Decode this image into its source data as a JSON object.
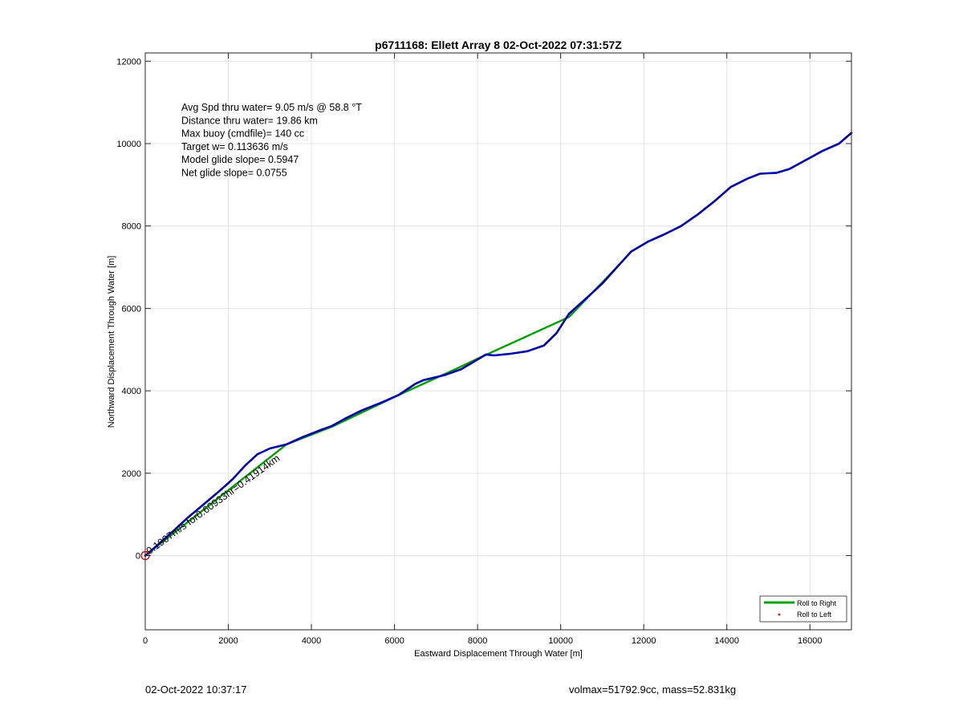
{
  "footer": {
    "left": "02-Oct-2022 10:37:17",
    "right": "volmax=51792.9cc, mass=52.831kg"
  },
  "chart_data": {
    "type": "line",
    "title": "p6711168: Ellett Array 8 02-Oct-2022 07:31:57Z",
    "xlabel": "Eastward Displacement Through Water [m]",
    "ylabel": "Northward Displacement Through Water [m]",
    "xlim": [
      0,
      17000
    ],
    "ylim": [
      -1800,
      12200
    ],
    "xticks": [
      0,
      2000,
      4000,
      6000,
      8000,
      10000,
      12000,
      14000,
      16000
    ],
    "xtick_labels": [
      "0",
      "2000",
      "4000",
      "6000",
      "8000",
      "10000",
      "12000",
      "14000",
      "16000"
    ],
    "yticks": [
      0,
      2000,
      4000,
      6000,
      8000,
      10000,
      12000
    ],
    "ytick_labels": [
      "",
      "2000",
      "4000",
      "6000",
      "8000",
      "10000",
      "12000"
    ],
    "grid": true,
    "legend_position": "bottom-right",
    "annotations": [
      "Avg Spd thru water=  9.05 m/s @  58.8 °T",
      "Distance thru water= 19.86 km",
      "Max buoy (cmdfile)= 140 cc",
      "Target w= 0.113636 m/s",
      "Model glide slope= 0.5947",
      "Net glide slope= 0.0755"
    ],
    "segment_label": {
      "text": "0.1907m/s for0.60933hr=0.41914km",
      "x": 100,
      "y": 20,
      "angle_deg": 36
    },
    "start_marker": {
      "x": 0,
      "y": 0,
      "label": "0"
    },
    "series": [
      {
        "name": "Roll to Right",
        "color": "#00a000",
        "style": "line",
        "segments": [
          [
            [
              0,
              0
            ],
            [
              3400,
              2700
            ],
            [
              4500,
              3130
            ],
            [
              6000,
              3850
            ],
            [
              7500,
              4540
            ],
            [
              8000,
              4780
            ],
            [
              10200,
              5790
            ],
            [
              11400,
              7050
            ]
          ]
        ]
      },
      {
        "name": "Roll to Left",
        "color": "#ff0000",
        "style": "dots",
        "points": [
          [
            0,
            0
          ]
        ]
      },
      {
        "name": "",
        "color": "#0000aa",
        "style": "line",
        "points": [
          [
            0,
            0
          ],
          [
            300,
            260
          ],
          [
            700,
            620
          ],
          [
            1000,
            900
          ],
          [
            1400,
            1240
          ],
          [
            1800,
            1580
          ],
          [
            2100,
            1850
          ],
          [
            2400,
            2180
          ],
          [
            2700,
            2460
          ],
          [
            3000,
            2600
          ],
          [
            3400,
            2700
          ],
          [
            3800,
            2880
          ],
          [
            4200,
            3040
          ],
          [
            4500,
            3150
          ],
          [
            4800,
            3320
          ],
          [
            5200,
            3520
          ],
          [
            5700,
            3720
          ],
          [
            6100,
            3900
          ],
          [
            6500,
            4170
          ],
          [
            6700,
            4260
          ],
          [
            7200,
            4380
          ],
          [
            7600,
            4520
          ],
          [
            8000,
            4760
          ],
          [
            8200,
            4880
          ],
          [
            8400,
            4860
          ],
          [
            8800,
            4900
          ],
          [
            9200,
            4960
          ],
          [
            9600,
            5100
          ],
          [
            9900,
            5400
          ],
          [
            10200,
            5870
          ],
          [
            10600,
            6230
          ],
          [
            11000,
            6600
          ],
          [
            11400,
            7050
          ],
          [
            11700,
            7380
          ],
          [
            12100,
            7620
          ],
          [
            12500,
            7800
          ],
          [
            12900,
            8000
          ],
          [
            13300,
            8280
          ],
          [
            13700,
            8600
          ],
          [
            14100,
            8950
          ],
          [
            14500,
            9150
          ],
          [
            14800,
            9270
          ],
          [
            15200,
            9290
          ],
          [
            15500,
            9380
          ],
          [
            15900,
            9600
          ],
          [
            16300,
            9820
          ],
          [
            16700,
            10000
          ],
          [
            17000,
            10260
          ]
        ]
      }
    ]
  }
}
